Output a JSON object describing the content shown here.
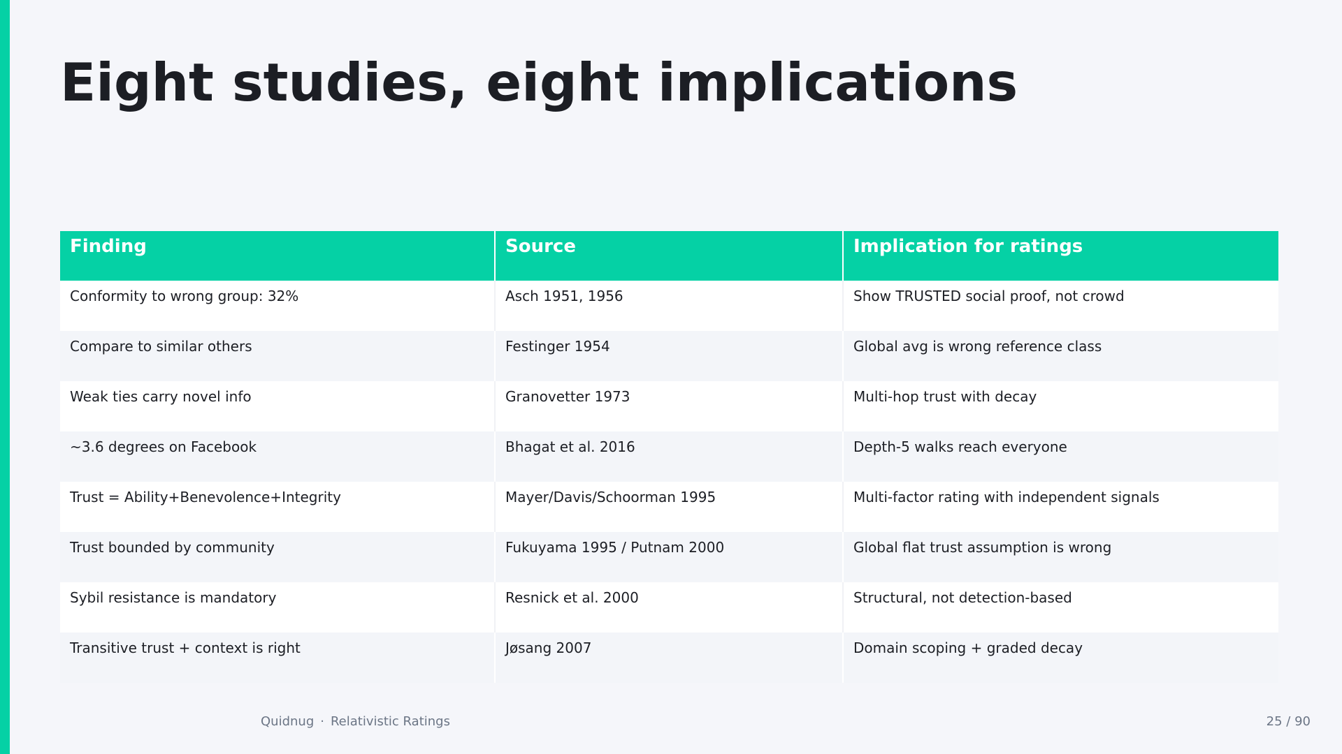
{
  "slide": {
    "title": "Eight studies, eight implications",
    "accent_color": "#05d1a5",
    "background_color": "#f5f6fa"
  },
  "table": {
    "headers": [
      "Finding",
      "Source",
      "Implication for ratings"
    ],
    "rows": [
      [
        "Conformity to wrong group: 32%",
        "Asch 1951, 1956",
        "Show TRUSTED social proof, not crowd"
      ],
      [
        "Compare to similar others",
        "Festinger 1954",
        "Global avg is wrong reference class"
      ],
      [
        "Weak ties carry novel info",
        "Granovetter 1973",
        "Multi-hop trust with decay"
      ],
      [
        "~3.6 degrees on Facebook",
        "Bhagat et al. 2016",
        "Depth-5 walks reach everyone"
      ],
      [
        "Trust = Ability+Benevolence+Integrity",
        "Mayer/Davis/Schoorman 1995",
        "Multi-factor rating with independent signals"
      ],
      [
        "Trust bounded by community",
        "Fukuyama 1995 / Putnam 2000",
        "Global flat trust assumption is wrong"
      ],
      [
        "Sybil resistance is mandatory",
        "Resnick et al. 2000",
        "Structural, not detection-based"
      ],
      [
        "Transitive trust + context is right",
        "Jøsang 2007",
        "Domain scoping + graded decay"
      ]
    ]
  },
  "footer": {
    "brand": "Quidnug",
    "separator": "·",
    "deck_title": "Relativistic Ratings",
    "page": "25 / 90"
  }
}
